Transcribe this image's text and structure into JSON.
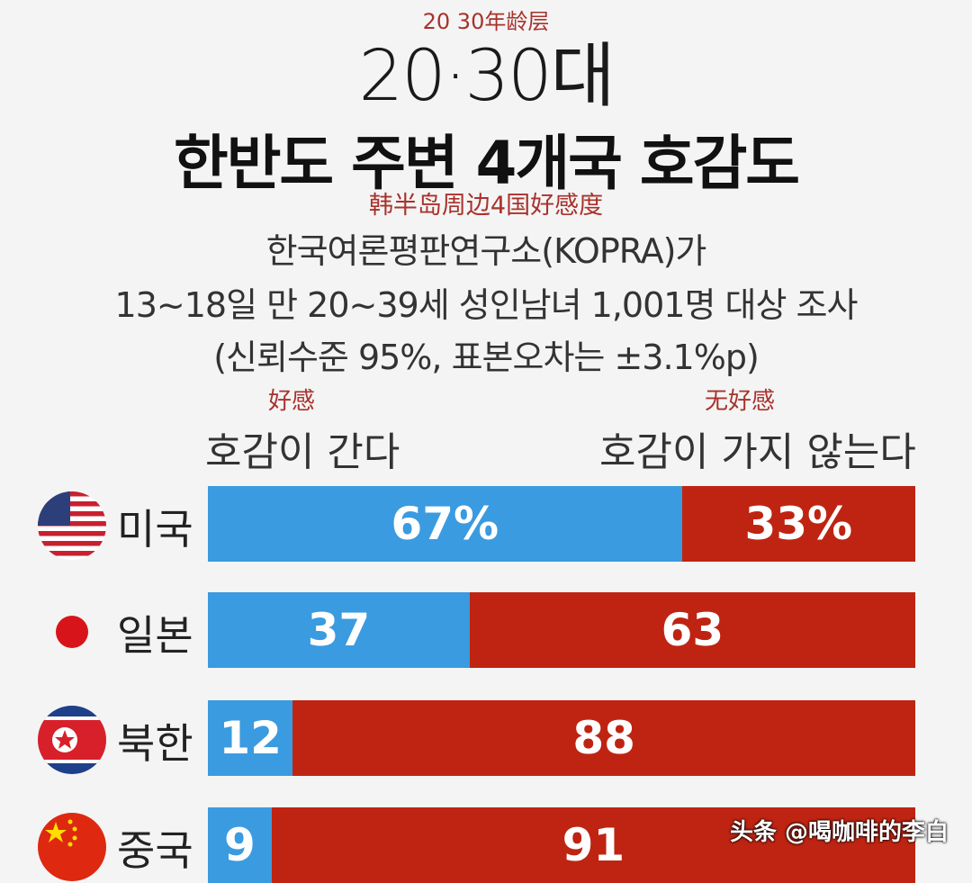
{
  "header": {
    "annotation_cn": "20 30年龄层",
    "age_group": "20·30대",
    "title": "한반도 주변 4개국 호감도",
    "title_cn": "韩半岛周边4国好感度",
    "subtitle_lines": [
      "한국여론평판연구소(KOPRA)가",
      "13~18일 만 20~39세 성인남녀 1,001명 대상 조사",
      "(신뢰수준 95%, 표본오차는 ±3.1%p)"
    ]
  },
  "legend": {
    "positive_cn": "好感",
    "positive": "호감이 간다",
    "negative_cn": "无好感",
    "negative": "호감이 가지 않는다"
  },
  "colors": {
    "positive": "#3a9be0",
    "negative": "#bf2412"
  },
  "chart_data": {
    "type": "bar",
    "stacked": true,
    "orientation": "horizontal",
    "categories": [
      "미국",
      "일본",
      "북한",
      "중국"
    ],
    "flags": [
      "usa-flag",
      "japan-flag",
      "north-korea-flag",
      "china-flag"
    ],
    "series": [
      {
        "name": "호감이 간다",
        "values": [
          67,
          37,
          12,
          9
        ],
        "labels": [
          "67%",
          "37",
          "12",
          "9"
        ]
      },
      {
        "name": "호감이 가지 않는다",
        "values": [
          33,
          63,
          88,
          91
        ],
        "labels": [
          "33%",
          "63",
          "88",
          "91"
        ]
      }
    ],
    "xlim": [
      0,
      100
    ]
  },
  "watermark": "头条 @喝咖啡的李白"
}
